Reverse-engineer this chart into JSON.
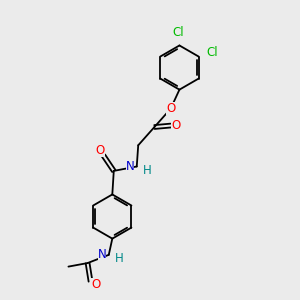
{
  "background_color": "#ebebeb",
  "bond_color": "#000000",
  "atom_colors": {
    "O": "#ff0000",
    "N": "#0000cc",
    "Cl": "#00bb00",
    "C": "#000000",
    "H": "#008888"
  },
  "font_size": 8.5,
  "fig_size": [
    3.0,
    3.0
  ],
  "dpi": 100,
  "lw": 1.3
}
